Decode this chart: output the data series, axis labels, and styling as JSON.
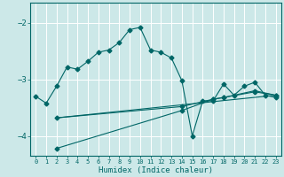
{
  "xlabel": "Humidex (Indice chaleur)",
  "bg_color": "#cce8e8",
  "grid_color": "#ffffff",
  "line_color": "#006666",
  "xlim": [
    -0.5,
    23.5
  ],
  "ylim": [
    -4.35,
    -1.65
  ],
  "yticks": [
    -4,
    -3,
    -2
  ],
  "xticks": [
    0,
    1,
    2,
    3,
    4,
    5,
    6,
    7,
    8,
    9,
    10,
    11,
    12,
    13,
    14,
    15,
    16,
    17,
    18,
    19,
    20,
    21,
    22,
    23
  ],
  "series1_x": [
    0,
    1,
    2,
    3,
    4,
    5,
    6,
    7,
    8,
    9,
    10,
    11,
    12,
    13,
    14,
    15,
    16,
    17,
    18,
    19,
    20,
    21,
    22,
    23
  ],
  "series1_y": [
    -3.3,
    -3.42,
    -3.12,
    -2.78,
    -2.82,
    -2.68,
    -2.52,
    -2.48,
    -2.35,
    -2.12,
    -2.08,
    -2.48,
    -2.52,
    -2.62,
    -3.02,
    -4.0,
    -3.38,
    -3.38,
    -3.08,
    -3.28,
    -3.12,
    -3.05,
    -3.28,
    -3.32
  ],
  "series2_x": [
    2,
    14,
    17,
    18,
    21,
    23
  ],
  "series2_y": [
    -4.22,
    -3.55,
    -3.35,
    -3.32,
    -3.2,
    -3.28
  ],
  "series3_x": [
    2,
    14,
    17,
    18,
    21,
    23
  ],
  "series3_y": [
    -3.68,
    -3.48,
    -3.35,
    -3.32,
    -3.22,
    -3.28
  ],
  "series4_x": [
    2,
    14,
    23
  ],
  "series4_y": [
    -3.68,
    -3.45,
    -3.28
  ],
  "markersize": 2.5,
  "linewidth": 0.8
}
